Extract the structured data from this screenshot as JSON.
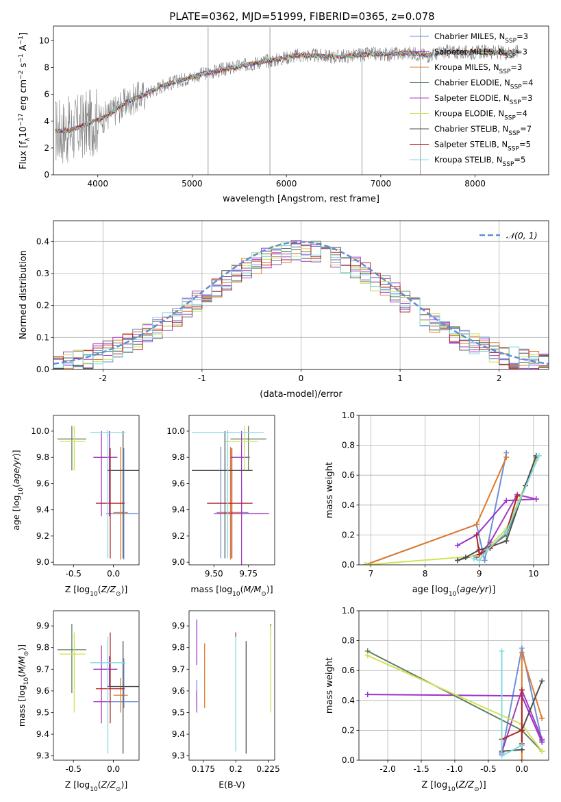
{
  "title": "PLATE=0362, MJD=51999, FIBERID=0365, z=0.078",
  "colors": {
    "Chabrier MILES": "#6a8fd8",
    "Salpeter MILES": "#9932cc",
    "Kroupa MILES": "#e07b2a",
    "Chabrier ELODIE": "#5f7f5f",
    "Salpeter ELODIE": "#a33db8",
    "Kroupa ELODIE": "#d4e157",
    "Chabrier STELIB": "#4d4d4d",
    "Salpeter STELIB": "#b22222",
    "Kroupa STELIB": "#7fdbe0",
    "data": "#808080",
    "normal": "#5b8fd6"
  },
  "chart_data": [
    {
      "type": "line",
      "title": "PLATE=0362, MJD=51999, FIBERID=0365, z=0.078",
      "xlabel": "wavelength [Angstrom, rest frame]",
      "ylabel": "Flux [fλ10⁻¹⁷ erg cm⁻² s⁻¹ A⁻¹]",
      "xlim": [
        3530,
        8780
      ],
      "ylim": [
        0,
        11.1
      ],
      "xticks": [
        4000,
        5000,
        6000,
        7000,
        8000
      ],
      "yticks": [
        0,
        2,
        4,
        6,
        8,
        10
      ],
      "grid": false,
      "legend_position": "right",
      "legend": [
        {
          "label": "Chabrier MILES, N",
          "sub": "SSP",
          "tail": "=3",
          "key": "Chabrier MILES"
        },
        {
          "label": "Salpeter MILES, N",
          "sub": "SSP",
          "tail": "=3",
          "key": "Salpeter MILES"
        },
        {
          "label": "Kroupa MILES, N",
          "sub": "SSP",
          "tail": "=3",
          "key": "Kroupa MILES"
        },
        {
          "label": "Chabrier ELODIE, N",
          "sub": "SSP",
          "tail": "=4",
          "key": "Chabrier ELODIE"
        },
        {
          "label": "Salpeter ELODIE, N",
          "sub": "SSP",
          "tail": "=3",
          "key": "Salpeter ELODIE"
        },
        {
          "label": "Kroupa ELODIE, N",
          "sub": "SSP",
          "tail": "=4",
          "key": "Kroupa ELODIE"
        },
        {
          "label": "Chabrier STELIB, N",
          "sub": "SSP",
          "tail": "=7",
          "key": "Chabrier STELIB"
        },
        {
          "label": "Salpeter STELIB, N",
          "sub": "SSP",
          "tail": "=5",
          "key": "Salpeter STELIB"
        },
        {
          "label": "Kroupa STELIB, N",
          "sub": "SSP",
          "tail": "=5",
          "key": "Kroupa STELIB"
        }
      ],
      "continuum_x": [
        3550,
        3700,
        3900,
        4100,
        4300,
        4500,
        4700,
        4900,
        5100,
        5300,
        5500,
        5700,
        5900,
        6100,
        6300,
        6500,
        6700,
        6900,
        7100,
        7300,
        7500,
        7700,
        7900,
        8100,
        8300,
        8450
      ],
      "continuum_y": [
        3.3,
        3.3,
        3.8,
        4.4,
        5.4,
        6.0,
        6.7,
        7.1,
        7.5,
        7.8,
        8.1,
        8.4,
        8.6,
        8.9,
        8.9,
        8.8,
        8.9,
        9.0,
        9.0,
        9.1,
        8.9,
        9.2,
        9.1,
        9.2,
        9.1,
        9.2
      ]
    },
    {
      "type": "histogram",
      "xlabel": "(data-model)/error",
      "ylabel": "Normed distribution",
      "xlim": [
        -2.5,
        2.5
      ],
      "ylim": [
        0,
        0.465
      ],
      "xticks": [
        -2,
        -1,
        0,
        1,
        2
      ],
      "yticks": [
        0.0,
        0.1,
        0.2,
        0.3,
        0.4
      ],
      "grid": true,
      "legend_position": "top-right",
      "legend": "𝒩(0, 1)",
      "bin_width": 0.1,
      "bins_start": -2.5
    },
    {
      "type": "scatter",
      "xlabel": "Z [log₁₀(Z/Z⊙)]",
      "ylabel": "age  [log₁₀(age/yr)]",
      "xlim": [
        -0.75,
        0.32
      ],
      "ylim": [
        8.98,
        10.12
      ],
      "xticks": [
        -0.5,
        0.0
      ],
      "yticks": [
        9.0,
        9.2,
        9.4,
        9.6,
        9.8,
        10.0
      ],
      "points": [
        {
          "key": "Chabrier MILES",
          "x": 0.13,
          "y": 9.37,
          "xerr": [
            0.22,
            0.18
          ],
          "yerr": [
            0.35,
            0.5
          ]
        },
        {
          "key": "Salpeter MILES",
          "x": -0.05,
          "y": 9.8,
          "xerr": [
            0.2,
            0.1
          ],
          "yerr": [
            0.45,
            0.2
          ]
        },
        {
          "key": "Kroupa MILES",
          "x": 0.09,
          "y": 9.38,
          "xerr": [
            0.09,
            0.09
          ],
          "yerr": [
            0.36,
            0.5
          ]
        },
        {
          "key": "Chabrier ELODIE",
          "x": -0.52,
          "y": 9.94,
          "xerr": [
            0.18,
            0.18
          ],
          "yerr": [
            0.24,
            0.1
          ]
        },
        {
          "key": "Salpeter ELODIE",
          "x": -0.15,
          "y": 9.8,
          "xerr": [
            0.1,
            0.1
          ],
          "yerr": [
            0.45,
            0.2
          ]
        },
        {
          "key": "Kroupa ELODIE",
          "x": -0.49,
          "y": 9.92,
          "xerr": [
            0.18,
            0.14
          ],
          "yerr": [
            0.22,
            0.12
          ]
        },
        {
          "key": "Chabrier STELIB",
          "x": 0.12,
          "y": 9.7,
          "xerr": [
            0.2,
            0.2
          ],
          "yerr": [
            0.67,
            0.3
          ]
        },
        {
          "key": "Salpeter STELIB",
          "x": -0.04,
          "y": 9.45,
          "xerr": [
            0.18,
            0.18
          ],
          "yerr": [
            0.42,
            0.42
          ]
        },
        {
          "key": "Kroupa STELIB",
          "x": -0.07,
          "y": 9.99,
          "xerr": [
            0.22,
            0.22
          ],
          "yerr": [
            0.96,
            0.02
          ]
        }
      ]
    },
    {
      "type": "scatter",
      "xlabel": "mass [log₁₀(M/M⊙)]",
      "xlim": [
        9.32,
        9.94
      ],
      "ylim": [
        8.98,
        10.12
      ],
      "xticks": [
        9.5,
        9.75
      ],
      "yticks": [
        9.0,
        9.2,
        9.4,
        9.6,
        9.8,
        10.0
      ],
      "points": [
        {
          "key": "Chabrier MILES",
          "x": 9.55,
          "y": 9.38,
          "xerr": [
            0.03,
            0.2
          ],
          "yerr": [
            0.35,
            0.5
          ]
        },
        {
          "key": "Salpeter MILES",
          "x": 9.7,
          "y": 9.8,
          "xerr": [
            0.08,
            0.06
          ],
          "yerr": [
            0.45,
            0.2
          ]
        },
        {
          "key": "Kroupa MILES",
          "x": 9.62,
          "y": 9.38,
          "xerr": [
            0.08,
            0.08
          ],
          "yerr": [
            0.36,
            0.5
          ]
        },
        {
          "key": "Chabrier ELODIE",
          "x": 9.75,
          "y": 9.94,
          "xerr": [
            0.13,
            0.13
          ],
          "yerr": [
            0.24,
            0.1
          ]
        },
        {
          "key": "Salpeter ELODIE",
          "x": 9.7,
          "y": 9.37,
          "xerr": [
            0.2,
            0.2
          ],
          "yerr": [
            0.45,
            0.2
          ]
        },
        {
          "key": "Kroupa ELODIE",
          "x": 9.72,
          "y": 9.92,
          "xerr": [
            0.14,
            0.1
          ],
          "yerr": [
            0.22,
            0.12
          ]
        },
        {
          "key": "Chabrier STELIB",
          "x": 9.58,
          "y": 9.7,
          "xerr": [
            0.24,
            0.2
          ],
          "yerr": [
            0.67,
            0.3
          ]
        },
        {
          "key": "Salpeter STELIB",
          "x": 9.63,
          "y": 9.45,
          "xerr": [
            0.18,
            0.15
          ],
          "yerr": [
            0.42,
            0.42
          ]
        },
        {
          "key": "Kroupa STELIB",
          "x": 9.6,
          "y": 9.99,
          "xerr": [
            0.26,
            0.26
          ],
          "yerr": [
            0.96,
            0.02
          ]
        }
      ]
    },
    {
      "type": "line",
      "xlabel": "age  [log₁₀(age/yr)]",
      "ylabel": "mass weight",
      "xlim": [
        6.78,
        10.28
      ],
      "ylim": [
        0,
        1.0
      ],
      "xticks": [
        7,
        8,
        9,
        10
      ],
      "yticks": [
        0.0,
        0.2,
        0.4,
        0.6,
        0.8,
        1.0
      ],
      "grid": true,
      "series": [
        {
          "key": "Chabrier MILES",
          "x": [
            6.9,
            8.95,
            9.1,
            9.5
          ],
          "y": [
            0.0,
            0.27,
            0.03,
            0.75
          ]
        },
        {
          "key": "Salpeter MILES",
          "x": [
            8.6,
            8.95,
            9.5,
            10.05
          ],
          "y": [
            0.13,
            0.2,
            0.43,
            0.44
          ]
        },
        {
          "key": "Kroupa MILES",
          "x": [
            6.9,
            8.95,
            9.5
          ],
          "y": [
            0.0,
            0.27,
            0.72
          ]
        },
        {
          "key": "Chabrier ELODIE",
          "x": [
            8.6,
            9.0,
            9.5,
            10.05
          ],
          "y": [
            0.03,
            0.07,
            0.2,
            0.72
          ]
        },
        {
          "key": "Salpeter ELODIE",
          "x": [
            8.95,
            9.2,
            9.7,
            10.05
          ],
          "y": [
            0.05,
            0.15,
            0.47,
            0.44
          ]
        },
        {
          "key": "Kroupa ELODIE",
          "x": [
            6.9,
            9.0,
            9.5,
            10.05
          ],
          "y": [
            0.0,
            0.06,
            0.24,
            0.7
          ]
        },
        {
          "key": "Chabrier STELIB",
          "x": [
            8.6,
            8.75,
            9.0,
            9.2,
            9.5,
            9.85,
            10.05
          ],
          "y": [
            0.03,
            0.05,
            0.1,
            0.12,
            0.16,
            0.53,
            0.73
          ]
        },
        {
          "key": "Salpeter STELIB",
          "x": [
            8.95,
            9.0,
            9.2,
            9.5,
            9.7
          ],
          "y": [
            0.2,
            0.07,
            0.11,
            0.22,
            0.46
          ]
        },
        {
          "key": "Kroupa STELIB",
          "x": [
            8.9,
            9.0,
            9.15,
            9.5,
            10.1
          ],
          "y": [
            0.04,
            0.03,
            0.1,
            0.22,
            0.73
          ]
        }
      ]
    },
    {
      "type": "scatter",
      "xlabel": "Z [log₁₀(Z/Z⊙)]",
      "ylabel": "mass [log₁₀(M/M⊙)]",
      "xlim": [
        -0.75,
        0.32
      ],
      "ylim": [
        9.28,
        9.97
      ],
      "xticks": [
        -0.5,
        0.0
      ],
      "yticks": [
        9.3,
        9.4,
        9.5,
        9.6,
        9.7,
        9.8,
        9.9
      ],
      "points": [
        {
          "key": "Chabrier MILES",
          "x": 0.13,
          "y": 9.55,
          "xerr": [
            0.22,
            0.18
          ],
          "yerr": [
            0.03,
            0.2
          ]
        },
        {
          "key": "Salpeter MILES",
          "x": -0.05,
          "y": 9.7,
          "xerr": [
            0.2,
            0.1
          ],
          "yerr": [
            0.08,
            0.06
          ]
        },
        {
          "key": "Kroupa MILES",
          "x": 0.09,
          "y": 9.58,
          "xerr": [
            0.09,
            0.09
          ],
          "yerr": [
            0.08,
            0.08
          ]
        },
        {
          "key": "Chabrier ELODIE",
          "x": -0.52,
          "y": 9.79,
          "xerr": [
            0.18,
            0.18
          ],
          "yerr": [
            0.2,
            0.12
          ]
        },
        {
          "key": "Salpeter ELODIE",
          "x": -0.15,
          "y": 9.55,
          "xerr": [
            0.1,
            0.1
          ],
          "yerr": [
            0.1,
            0.26
          ]
        },
        {
          "key": "Kroupa ELODIE",
          "x": -0.49,
          "y": 9.77,
          "xerr": [
            0.18,
            0.14
          ],
          "yerr": [
            0.27,
            0.1
          ]
        },
        {
          "key": "Chabrier STELIB",
          "x": 0.12,
          "y": 9.62,
          "xerr": [
            0.2,
            0.2
          ],
          "yerr": [
            0.31,
            0.21
          ]
        },
        {
          "key": "Salpeter STELIB",
          "x": -0.04,
          "y": 9.61,
          "xerr": [
            0.18,
            0.18
          ],
          "yerr": [
            0.16,
            0.26
          ]
        },
        {
          "key": "Kroupa STELIB",
          "x": -0.07,
          "y": 9.73,
          "xerr": [
            0.22,
            0.22
          ],
          "yerr": [
            0.42,
            0.12
          ]
        }
      ]
    },
    {
      "type": "scatter",
      "xlabel": "E(B-V)",
      "xlim": [
        0.164,
        0.23
      ],
      "ylim": [
        9.28,
        9.97
      ],
      "xticks": [
        0.175,
        0.2,
        0.225
      ],
      "yticks": [
        9.3,
        9.4,
        9.5,
        9.6,
        9.7,
        9.8,
        9.9
      ],
      "points": [
        {
          "key": "Chabrier MILES",
          "x": 0.17,
          "y": 9.6,
          "yerr": [
            0.08,
            0.05
          ]
        },
        {
          "key": "Salpeter MILES",
          "x": 0.17,
          "y": 9.78,
          "yerr": [
            0.06,
            0.15
          ]
        },
        {
          "key": "Kroupa MILES",
          "x": 0.176,
          "y": 9.67,
          "yerr": [
            0.15,
            0.15
          ]
        },
        {
          "key": "Chabrier ELODIE",
          "x": 0.227,
          "y": 9.88,
          "yerr": [
            0.02,
            0.03
          ]
        },
        {
          "key": "Salpeter ELODIE",
          "x": 0.17,
          "y": 9.55,
          "yerr": [
            0.05,
            0.05
          ]
        },
        {
          "key": "Kroupa ELODIE",
          "x": 0.227,
          "y": 9.7,
          "yerr": [
            0.2,
            0.2
          ]
        },
        {
          "key": "Chabrier STELIB",
          "x": 0.208,
          "y": 9.57,
          "yerr": [
            0.26,
            0.26
          ]
        },
        {
          "key": "Salpeter STELIB",
          "x": 0.2,
          "y": 9.86,
          "yerr": [
            0.01,
            0.01
          ]
        },
        {
          "key": "Kroupa STELIB",
          "x": 0.2,
          "y": 9.55,
          "yerr": [
            0.23,
            0.3
          ]
        }
      ]
    },
    {
      "type": "line",
      "xlabel": "Z [log₁₀(Z/Z⊙)]",
      "ylabel": "mass weight",
      "xlim": [
        -2.43,
        0.4
      ],
      "ylim": [
        0,
        1.0
      ],
      "xticks": [
        -2.0,
        -1.5,
        -1.0,
        -0.5,
        0.0
      ],
      "yticks": [
        0.0,
        0.2,
        0.4,
        0.6,
        0.8,
        1.0
      ],
      "grid": true,
      "series": [
        {
          "key": "Chabrier MILES",
          "x": [
            -0.3,
            0.0,
            0.3
          ],
          "y": [
            0.04,
            0.75,
            0.13
          ]
        },
        {
          "key": "Salpeter MILES",
          "x": [
            -2.3,
            0.0,
            0.3
          ],
          "y": [
            0.44,
            0.43,
            0.12
          ]
        },
        {
          "key": "Kroupa MILES",
          "x": [
            0.0,
            0.0,
            0.3
          ],
          "y": [
            0.0,
            0.72,
            0.28
          ]
        },
        {
          "key": "Chabrier ELODIE",
          "x": [
            -2.3,
            0.0,
            0.3
          ],
          "y": [
            0.73,
            0.2,
            0.06
          ]
        },
        {
          "key": "Salpeter ELODIE",
          "x": [
            -0.3,
            0.0,
            0.3
          ],
          "y": [
            0.05,
            0.47,
            0.14
          ]
        },
        {
          "key": "Kroupa ELODIE",
          "x": [
            -2.3,
            0.0,
            0.3
          ],
          "y": [
            0.7,
            0.24,
            0.06
          ]
        },
        {
          "key": "Chabrier STELIB",
          "x": [
            -0.3,
            0.0,
            0.0,
            0.3
          ],
          "y": [
            0.06,
            0.07,
            0.2,
            0.53
          ]
        },
        {
          "key": "Salpeter STELIB",
          "x": [
            -0.3,
            0.0,
            0.0,
            0.0
          ],
          "y": [
            0.14,
            0.2,
            0.47,
            0.11
          ]
        },
        {
          "key": "Kroupa STELIB",
          "x": [
            -0.3,
            -0.3,
            0.0
          ],
          "y": [
            0.73,
            0.03,
            0.1
          ]
        }
      ]
    }
  ]
}
